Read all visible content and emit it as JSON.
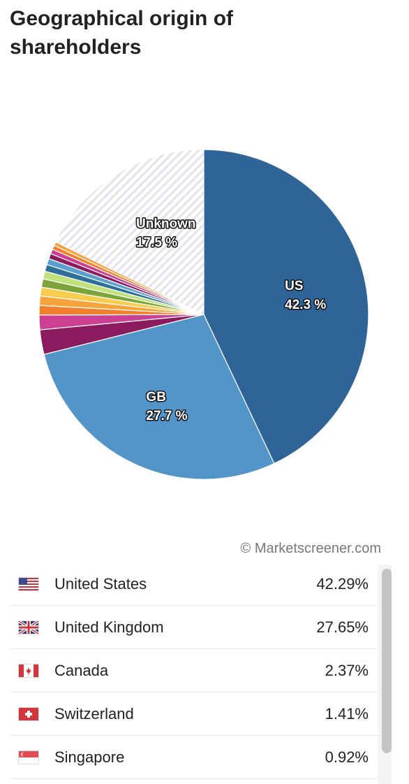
{
  "header": {
    "title": "Geographical origin of shareholders"
  },
  "credit": "© Marketscreener.com",
  "chart_data": {
    "type": "pie",
    "title": "Geographical origin of shareholders",
    "slices": [
      {
        "label": "US",
        "value": 42.3,
        "display": "42.3 %",
        "color": "#2e6497",
        "labeled": true
      },
      {
        "label": "GB",
        "value": 27.7,
        "display": "27.7 %",
        "color": "#5495c9",
        "labeled": true
      },
      {
        "label": "",
        "value": 2.37,
        "color": "#8b1a5e",
        "labeled": false
      },
      {
        "label": "",
        "value": 1.41,
        "color": "#cc3f93",
        "labeled": false
      },
      {
        "label": "",
        "value": 0.92,
        "color": "#f0802b",
        "labeled": false
      },
      {
        "label": "",
        "value": 0.9,
        "color": "#f5a33a",
        "labeled": false
      },
      {
        "label": "",
        "value": 0.85,
        "color": "#f7cd50",
        "labeled": false
      },
      {
        "label": "",
        "value": 0.8,
        "color": "#7da33b",
        "labeled": false
      },
      {
        "label": "",
        "value": 0.75,
        "color": "#bfe27a",
        "labeled": false
      },
      {
        "label": "",
        "value": 0.65,
        "color": "#2e6f99",
        "labeled": false
      },
      {
        "label": "",
        "value": 0.6,
        "color": "#5aa0cf",
        "labeled": false
      },
      {
        "label": "",
        "value": 0.5,
        "color": "#8b1a5e",
        "labeled": false
      },
      {
        "label": "",
        "value": 0.45,
        "color": "#cc3f93",
        "labeled": false
      },
      {
        "label": "",
        "value": 0.4,
        "color": "#f0802b",
        "labeled": false
      },
      {
        "label": "",
        "value": 0.35,
        "color": "#f5a33a",
        "labeled": false
      },
      {
        "label": "Unknown",
        "value": 17.5,
        "display": "17.5 %",
        "color": "hatched",
        "labeled": true
      }
    ]
  },
  "table": {
    "rows": [
      {
        "country": "United States",
        "pct": "42.29%",
        "flag": "us-flag-icon"
      },
      {
        "country": "United Kingdom",
        "pct": "27.65%",
        "flag": "uk-flag-icon"
      },
      {
        "country": "Canada",
        "pct": "2.37%",
        "flag": "canada-flag-icon"
      },
      {
        "country": "Switzerland",
        "pct": "1.41%",
        "flag": "switzerland-flag-icon"
      },
      {
        "country": "Singapore",
        "pct": "0.92%",
        "flag": "singapore-flag-icon"
      }
    ]
  }
}
